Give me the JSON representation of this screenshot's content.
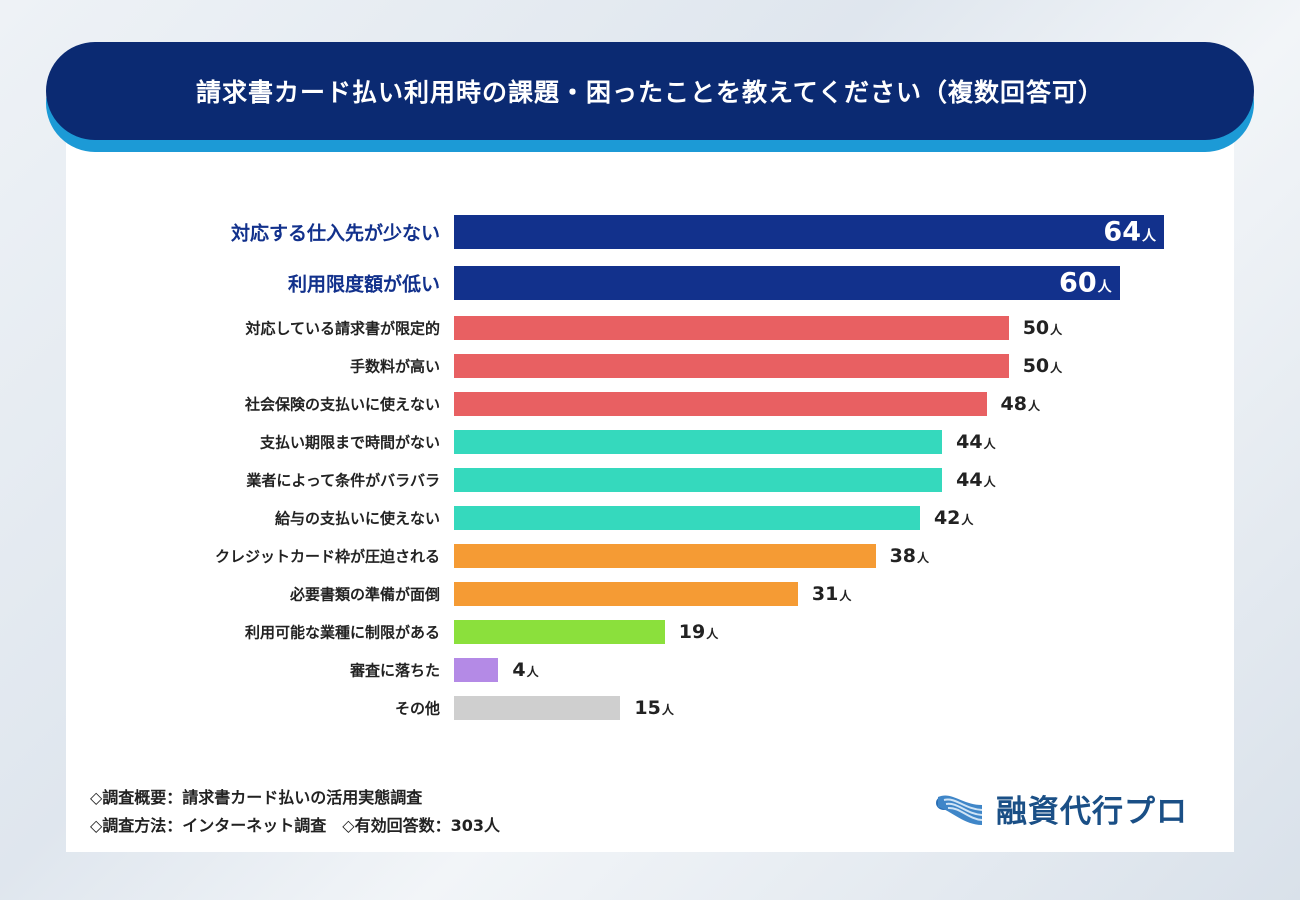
{
  "chart_data": {
    "type": "bar",
    "orientation": "horizontal",
    "title": "請求書カード払い利用時の課題・困ったことを教えてください（複数回答可）",
    "unit": "人",
    "categories": [
      "対応する仕入先が少ない",
      "利用限度額が低い",
      "対応している請求書が限定的",
      "手数料が高い",
      "社会保険の支払いに使えない",
      "支払い期限まで時間がない",
      "業者によって条件がバラバラ",
      "給与の支払いに使えない",
      "クレジットカード枠が圧迫される",
      "必要書類の準備が面倒",
      "利用可能な業種に制限がある",
      "審査に落ちた",
      "その他"
    ],
    "values": [
      64,
      60,
      50,
      50,
      48,
      44,
      44,
      42,
      38,
      31,
      19,
      4,
      15
    ],
    "colors": [
      "#12318c",
      "#12318c",
      "#e86062",
      "#e86062",
      "#e86062",
      "#35d9bd",
      "#35d9bd",
      "#35d9bd",
      "#f59b34",
      "#f59b34",
      "#8be03c",
      "#b48ae6",
      "#cfcfcf"
    ],
    "grid": false
  },
  "footer": {
    "line1": "◇調査概要：請求書カード払いの活用実態調査",
    "line2": "◇調査方法：インターネット調査　◇有効回答数：303人"
  },
  "logo": {
    "text": "融資代行プロ",
    "icon": "wave-logo-icon"
  }
}
